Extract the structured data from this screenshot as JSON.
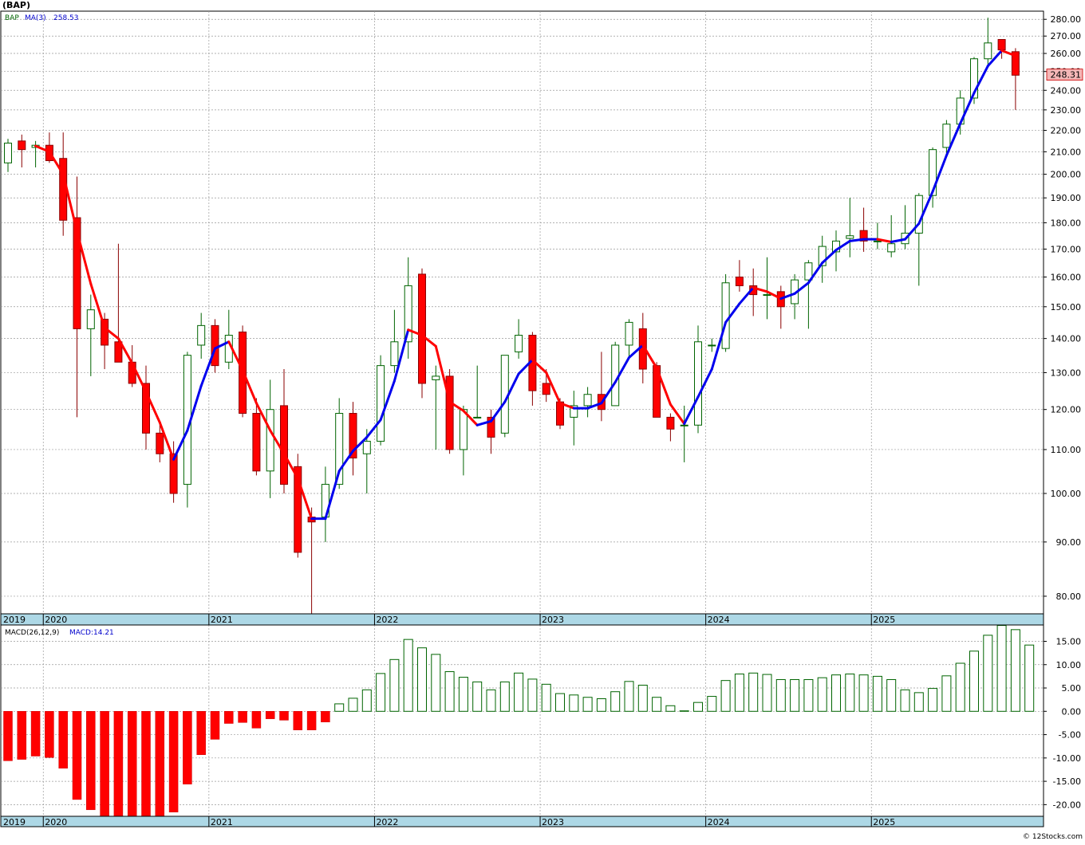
{
  "chart_data": [
    {
      "type": "candlestick",
      "title": "(BAP)",
      "ticker_label": "BAP",
      "ma_label": "MA(3)",
      "ma_value_label": "258.53",
      "last_price_label": "248.31",
      "scale": "log",
      "ylim": [
        77,
        285
      ],
      "yticks": [
        80,
        90,
        100,
        110,
        120,
        130,
        140,
        150,
        160,
        170,
        180,
        190,
        200,
        210,
        220,
        230,
        240,
        250,
        260,
        270,
        280
      ],
      "ytick_labels": [
        "80.00",
        "90.00",
        "100.00",
        "110.00",
        "120.00",
        "130.00",
        "140.00",
        "150.00",
        "160.00",
        "170.00",
        "180.00",
        "190.00",
        "200.00",
        "210.00",
        "220.00",
        "230.00",
        "240.00",
        "250.00",
        "260.00",
        "270.00",
        "280.00"
      ],
      "x_labels": [
        {
          "label": "2019",
          "month_index": 0
        },
        {
          "label": "2020",
          "month_index": 3
        },
        {
          "label": "2021",
          "month_index": 15
        },
        {
          "label": "2022",
          "month_index": 27
        },
        {
          "label": "2023",
          "month_index": 39
        },
        {
          "label": "2024",
          "month_index": 51
        },
        {
          "label": "2025",
          "month_index": 63
        }
      ],
      "candles": [
        {
          "o": 205,
          "h": 216,
          "l": 201,
          "c": 214
        },
        {
          "o": 215,
          "h": 218,
          "l": 203,
          "c": 211
        },
        {
          "o": 212,
          "h": 215,
          "l": 203,
          "c": 213
        },
        {
          "o": 213,
          "h": 219,
          "l": 205,
          "c": 206
        },
        {
          "o": 207,
          "h": 219,
          "l": 175,
          "c": 181
        },
        {
          "o": 182,
          "h": 199,
          "l": 118,
          "c": 143
        },
        {
          "o": 143,
          "h": 154,
          "l": 129,
          "c": 149
        },
        {
          "o": 146,
          "h": 148,
          "l": 131,
          "c": 138
        },
        {
          "o": 139,
          "h": 172,
          "l": 133,
          "c": 133
        },
        {
          "o": 133,
          "h": 138,
          "l": 126,
          "c": 127
        },
        {
          "o": 127,
          "h": 132,
          "l": 110,
          "c": 114
        },
        {
          "o": 114,
          "h": 117,
          "l": 107,
          "c": 109
        },
        {
          "o": 109,
          "h": 112,
          "l": 98,
          "c": 100
        },
        {
          "o": 102,
          "h": 136,
          "l": 97,
          "c": 135
        },
        {
          "o": 138,
          "h": 148,
          "l": 134,
          "c": 144
        },
        {
          "o": 144,
          "h": 146,
          "l": 130,
          "c": 132
        },
        {
          "o": 133,
          "h": 149,
          "l": 131,
          "c": 141
        },
        {
          "o": 142,
          "h": 144,
          "l": 118,
          "c": 119
        },
        {
          "o": 119,
          "h": 123,
          "l": 104,
          "c": 105
        },
        {
          "o": 105,
          "h": 128,
          "l": 99,
          "c": 120
        },
        {
          "o": 121,
          "h": 131,
          "l": 100,
          "c": 102
        },
        {
          "o": 106,
          "h": 109,
          "l": 87,
          "c": 88
        },
        {
          "o": 95,
          "h": 97,
          "l": 77,
          "c": 94
        },
        {
          "o": 95,
          "h": 106,
          "l": 90,
          "c": 102
        },
        {
          "o": 102,
          "h": 123,
          "l": 101,
          "c": 119
        },
        {
          "o": 119,
          "h": 122,
          "l": 104,
          "c": 108
        },
        {
          "o": 109,
          "h": 115,
          "l": 100,
          "c": 112
        },
        {
          "o": 112,
          "h": 135,
          "l": 111,
          "c": 132
        },
        {
          "o": 132,
          "h": 149,
          "l": 130,
          "c": 139
        },
        {
          "o": 139,
          "h": 167,
          "l": 134,
          "c": 157
        },
        {
          "o": 161,
          "h": 163,
          "l": 123,
          "c": 127
        },
        {
          "o": 128,
          "h": 132,
          "l": 110,
          "c": 129
        },
        {
          "o": 129,
          "h": 131,
          "l": 109,
          "c": 110
        },
        {
          "o": 110,
          "h": 121,
          "l": 104,
          "c": 120
        },
        {
          "o": 118,
          "h": 132,
          "l": 118,
          "c": 118
        },
        {
          "o": 118,
          "h": 120,
          "l": 109,
          "c": 113
        },
        {
          "o": 114,
          "h": 135,
          "l": 113,
          "c": 135
        },
        {
          "o": 136,
          "h": 146,
          "l": 134,
          "c": 141
        },
        {
          "o": 141,
          "h": 142,
          "l": 121,
          "c": 125
        },
        {
          "o": 127,
          "h": 131,
          "l": 122,
          "c": 124
        },
        {
          "o": 122,
          "h": 123,
          "l": 115,
          "c": 116
        },
        {
          "o": 118,
          "h": 125,
          "l": 111,
          "c": 121
        },
        {
          "o": 121,
          "h": 126,
          "l": 118,
          "c": 124
        },
        {
          "o": 124,
          "h": 136,
          "l": 117,
          "c": 120
        },
        {
          "o": 121,
          "h": 139,
          "l": 121,
          "c": 138
        },
        {
          "o": 138,
          "h": 146,
          "l": 134,
          "c": 145
        },
        {
          "o": 143,
          "h": 148,
          "l": 127,
          "c": 131
        },
        {
          "o": 132,
          "h": 133,
          "l": 118,
          "c": 118
        },
        {
          "o": 118,
          "h": 119,
          "l": 112,
          "c": 115
        },
        {
          "o": 116,
          "h": 121,
          "l": 107,
          "c": 116
        },
        {
          "o": 116,
          "h": 144,
          "l": 114,
          "c": 139
        },
        {
          "o": 138,
          "h": 140,
          "l": 136,
          "c": 138
        },
        {
          "o": 137,
          "h": 161,
          "l": 136,
          "c": 158
        },
        {
          "o": 160,
          "h": 166,
          "l": 155,
          "c": 157
        },
        {
          "o": 157,
          "h": 163,
          "l": 147,
          "c": 154
        },
        {
          "o": 154,
          "h": 167,
          "l": 146,
          "c": 154
        },
        {
          "o": 155,
          "h": 157,
          "l": 143,
          "c": 150
        },
        {
          "o": 151,
          "h": 161,
          "l": 146,
          "c": 159
        },
        {
          "o": 159,
          "h": 166,
          "l": 143,
          "c": 165
        },
        {
          "o": 164,
          "h": 175,
          "l": 158,
          "c": 171
        },
        {
          "o": 169,
          "h": 177,
          "l": 162,
          "c": 173
        },
        {
          "o": 174,
          "h": 190,
          "l": 167,
          "c": 175
        },
        {
          "o": 177,
          "h": 186,
          "l": 169,
          "c": 173
        },
        {
          "o": 173,
          "h": 180,
          "l": 170,
          "c": 173
        },
        {
          "o": 169,
          "h": 183,
          "l": 167,
          "c": 172
        },
        {
          "o": 172,
          "h": 187,
          "l": 170,
          "c": 176
        },
        {
          "o": 176,
          "h": 192,
          "l": 157,
          "c": 191
        },
        {
          "o": 191,
          "h": 212,
          "l": 186,
          "c": 211
        },
        {
          "o": 212,
          "h": 225,
          "l": 209,
          "c": 223
        },
        {
          "o": 223,
          "h": 240,
          "l": 218,
          "c": 236
        },
        {
          "o": 236,
          "h": 258,
          "l": 233,
          "c": 257
        },
        {
          "o": 257,
          "h": 281,
          "l": 252,
          "c": 266
        },
        {
          "o": 268,
          "h": 268,
          "l": 257,
          "c": 262
        },
        {
          "o": 261,
          "h": 263,
          "l": 230,
          "c": 248
        }
      ]
    },
    {
      "type": "bar",
      "title": "MACD(26,12,9)",
      "macd_label": "MACD:14.21",
      "ylim": [
        -22.5,
        18.5
      ],
      "yticks": [
        -20,
        -15,
        -10,
        -5,
        0,
        5,
        10,
        15
      ],
      "ytick_labels": [
        "-20.00",
        "-15.00",
        "-10.00",
        "-5.00",
        "0.00",
        "5.00",
        "10.00",
        "15.00"
      ],
      "values": [
        -10.6,
        -10.3,
        -9.6,
        -9.9,
        -12.2,
        -18.9,
        -21.1,
        -23.0,
        -23.0,
        -23.0,
        -23.0,
        -22.7,
        -21.6,
        -15.6,
        -9.3,
        -6.0,
        -2.6,
        -2.4,
        -3.6,
        -1.6,
        -1.9,
        -4.0,
        -4.0,
        -2.3,
        1.6,
        2.8,
        4.6,
        8.1,
        11.1,
        15.4,
        13.6,
        12.2,
        8.5,
        7.3,
        6.3,
        4.6,
        6.3,
        8.2,
        6.9,
        5.8,
        3.8,
        3.5,
        3.0,
        2.7,
        4.2,
        6.4,
        5.6,
        3.0,
        1.2,
        0.1,
        1.9,
        3.2,
        6.6,
        8.0,
        8.2,
        7.9,
        6.8,
        6.8,
        6.8,
        7.2,
        7.8,
        8.0,
        7.8,
        7.5,
        6.8,
        4.6,
        4.0,
        4.9,
        7.6,
        10.3,
        12.9,
        16.3,
        18.4,
        17.5,
        14.2
      ]
    }
  ],
  "footer": {
    "credit": "© 12Stocks.com"
  }
}
